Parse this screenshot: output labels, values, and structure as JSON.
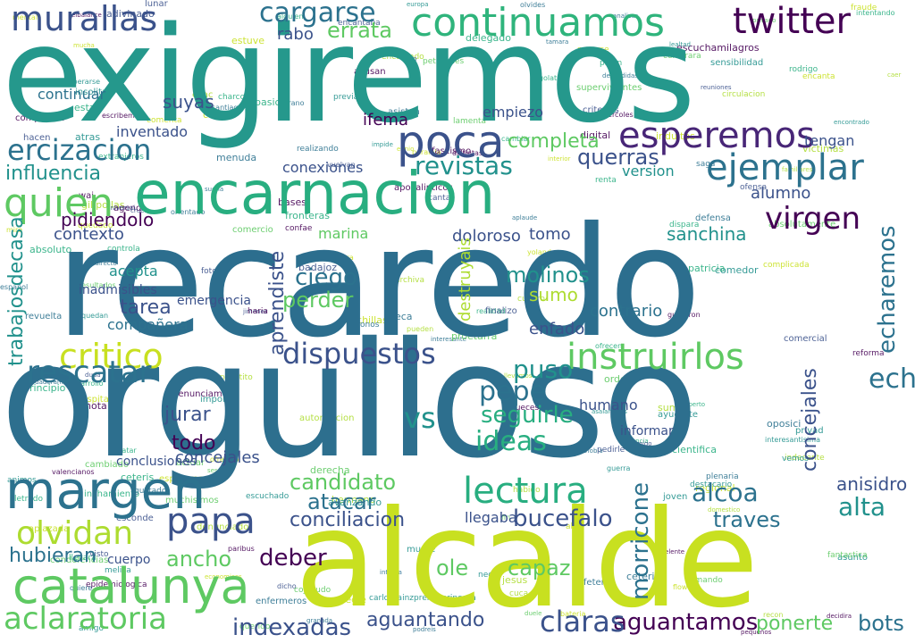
{
  "palette": [
    "#440154",
    "#3b528b",
    "#2c728e",
    "#21918c",
    "#28ae80",
    "#5ec962",
    "#addc30",
    "#c8e020"
  ],
  "words": [
    {
      "text": "orgulloso",
      "color": "#2c6e8e"
    },
    {
      "text": "recaredo",
      "color": "#2c6e8e"
    },
    {
      "text": "exigiremos",
      "color": "#21918c"
    },
    {
      "text": "alcalde",
      "color": "#c8e020"
    },
    {
      "text": "encarnacion",
      "color": "#28ae80"
    },
    {
      "text": "continuamos",
      "color": "#28ae80"
    },
    {
      "text": "margen",
      "color": "#2c728e"
    },
    {
      "text": "catalunya",
      "color": "#5ec962"
    },
    {
      "text": "poca",
      "color": "#3b528b"
    },
    {
      "text": "esperemos",
      "color": "#440154"
    },
    {
      "text": "ejemplar",
      "color": "#2c728e"
    },
    {
      "text": "twitter",
      "color": "#440154"
    },
    {
      "text": "murallas",
      "color": "#3b528b"
    },
    {
      "text": "cargarse",
      "color": "#2c728e"
    },
    {
      "text": "quien",
      "color": "#5ec962"
    },
    {
      "text": "ercizacion",
      "color": "#2c728e"
    },
    {
      "text": "virgen",
      "color": "#440154"
    },
    {
      "text": "dispuestos",
      "color": "#3b528b"
    },
    {
      "text": "instruirlos",
      "color": "#5ec962"
    },
    {
      "text": "critico",
      "color": "#c8e020"
    },
    {
      "text": "papa",
      "color": "#3b528b"
    },
    {
      "text": "lectura",
      "color": "#28ae80"
    },
    {
      "text": "aclaratoria",
      "color": "#5ec962"
    },
    {
      "text": "olvidan",
      "color": "#addc30"
    },
    {
      "text": "indexadas",
      "color": "#3b528b"
    },
    {
      "text": "aguantamos",
      "color": "#440154"
    },
    {
      "text": "claras",
      "color": "#3b528b"
    },
    {
      "text": "ideas",
      "color": "#28ae80"
    },
    {
      "text": "rescatar",
      "color": "#2c728e"
    },
    {
      "text": "echaremos",
      "color": "#2c728e"
    },
    {
      "text": "revistas",
      "color": "#21918c"
    },
    {
      "text": "completa",
      "color": "#5ec962"
    },
    {
      "text": "querras",
      "color": "#3b528b"
    },
    {
      "text": "influencia",
      "color": "#21918c"
    },
    {
      "text": "hubieran",
      "color": "#2c728e"
    },
    {
      "text": "deber",
      "color": "#440154"
    },
    {
      "text": "bucefalo",
      "color": "#3b528b"
    },
    {
      "text": "alcoa",
      "color": "#2c728e"
    },
    {
      "text": "alta",
      "color": "#21918c"
    },
    {
      "text": "atacar",
      "color": "#2c728e"
    },
    {
      "text": "candidato",
      "color": "#5ec962"
    },
    {
      "text": "pepe",
      "color": "#2c728e"
    },
    {
      "text": "vs",
      "color": "#21918c"
    },
    {
      "text": "puso",
      "color": "#21918c"
    },
    {
      "text": "seguirle",
      "color": "#28ae80"
    },
    {
      "text": "ciego",
      "color": "#2c728e"
    },
    {
      "text": "perder",
      "color": "#5ec962"
    },
    {
      "text": "tarea",
      "color": "#3b528b"
    },
    {
      "text": "molinos",
      "color": "#21918c"
    },
    {
      "text": "sumo",
      "color": "#addc30"
    },
    {
      "text": "todo",
      "color": "#440154"
    },
    {
      "text": "jurar",
      "color": "#3b528b"
    },
    {
      "text": "ancho",
      "color": "#5ec962"
    },
    {
      "text": "ole",
      "color": "#5ec962"
    },
    {
      "text": "capaz",
      "color": "#5ec962"
    },
    {
      "text": "conciliacion",
      "color": "#3b528b"
    },
    {
      "text": "traves",
      "color": "#2c728e"
    },
    {
      "text": "aguantando",
      "color": "#3b528b"
    },
    {
      "text": "bots",
      "color": "#2c728e"
    },
    {
      "text": "ponerte",
      "color": "#5ec962"
    },
    {
      "text": "errata",
      "color": "#5ec962"
    },
    {
      "text": "rabo",
      "color": "#3b528b"
    },
    {
      "text": "suyas",
      "color": "#3b528b"
    },
    {
      "text": "ifema",
      "color": "#440154"
    },
    {
      "text": "pidiendolo",
      "color": "#440154"
    },
    {
      "text": "contexto",
      "color": "#3b528b"
    },
    {
      "text": "conexiones",
      "color": "#3b528b"
    },
    {
      "text": "doloroso",
      "color": "#3b528b"
    },
    {
      "text": "tomo",
      "color": "#3b528b"
    },
    {
      "text": "sanchina",
      "color": "#21918c"
    },
    {
      "text": "alumno",
      "color": "#3b528b"
    },
    {
      "text": "enfado",
      "color": "#3b528b"
    },
    {
      "text": "contrario",
      "color": "#2c728e"
    },
    {
      "text": "inadmisibles",
      "color": "#3b528b"
    },
    {
      "text": "acepta",
      "color": "#21918c"
    },
    {
      "text": "compañera",
      "color": "#2c728e"
    },
    {
      "text": "emergencia",
      "color": "#3b528b"
    },
    {
      "text": "continuar",
      "color": "#2c728e"
    },
    {
      "text": "inventado",
      "color": "#3b528b"
    },
    {
      "text": "empiezo",
      "color": "#3b528b"
    },
    {
      "text": "version",
      "color": "#21918c"
    },
    {
      "text": "tengan",
      "color": "#3b528b"
    },
    {
      "text": "anisidro",
      "color": "#3b528b"
    },
    {
      "text": "llegaba",
      "color": "#3b528b"
    },
    {
      "text": "concejales",
      "color": "#3b528b"
    },
    {
      "text": "marina",
      "color": "#3b528b"
    },
    {
      "text": "morricone",
      "color": "#5ec962"
    },
    {
      "text": "extranjeros",
      "color": "#2c728e"
    },
    {
      "text": "aprendiste",
      "color": "#21918c"
    },
    {
      "text": "destruyais",
      "color": "#3b528b"
    },
    {
      "text": "trabajosdecasa",
      "color": "#addc30"
    },
    {
      "text": "conclusiones",
      "color": "#21918c"
    },
    {
      "text": "cuerpo",
      "color": "#3b528b"
    },
    {
      "text": "humano",
      "color": "#3b528b"
    },
    {
      "text": "informar",
      "color": "#3b528b"
    },
    {
      "text": "llevara",
      "color": "#3b528b"
    },
    {
      "text": "escuchado",
      "color": "#3b528b"
    },
    {
      "text": "fascismo",
      "color": "#3b528b"
    },
    {
      "text": "finalizo",
      "color": "#3b528b"
    },
    {
      "text": "decidira",
      "color": "#3b528b"
    },
    {
      "text": "encontrado",
      "color": "#3b528b"
    },
    {
      "text": "renta",
      "color": "#3b528b"
    },
    {
      "text": "ennio",
      "color": "#3b528b"
    },
    {
      "text": "gustado",
      "color": "#3b528b"
    },
    {
      "text": "quiere",
      "color": "#3b528b"
    },
    {
      "text": "paralela",
      "color": "#3b528b"
    },
    {
      "text": "ayudarte",
      "color": "#3b528b"
    },
    {
      "text": "veto",
      "color": "#3b528b"
    },
    {
      "text": "asalariados",
      "color": "#3b528b"
    },
    {
      "text": "beca",
      "color": "#3b528b"
    },
    {
      "text": "archiva",
      "color": "#3b528b"
    },
    {
      "text": "valla",
      "color": "#3b528b"
    },
    {
      "text": "recon",
      "color": "#3b528b"
    },
    {
      "text": "sumen",
      "color": "#3b528b"
    },
    {
      "text": "confae",
      "color": "#3b528b"
    },
    {
      "text": "guerra",
      "color": "#3b528b"
    },
    {
      "text": "mire",
      "color": "#3b528b"
    },
    {
      "text": "amigo",
      "color": "#3b528b"
    },
    {
      "text": "cuadro",
      "color": "#3b528b"
    },
    {
      "text": "familiares",
      "color": "#3b528b"
    },
    {
      "text": "enemigo",
      "color": "#3b528b"
    },
    {
      "text": "denunciado",
      "color": "#3b528b"
    },
    {
      "text": "elbalance",
      "color": "#3b528b"
    },
    {
      "text": "circulacion",
      "color": "#3b528b"
    },
    {
      "text": "haria",
      "color": "#3b528b"
    },
    {
      "text": "suena",
      "color": "#3b528b"
    },
    {
      "text": "lunar",
      "color": "#3b528b"
    },
    {
      "text": "acusan",
      "color": "#3b528b"
    },
    {
      "text": "animos",
      "color": "#3b528b"
    },
    {
      "text": "cojonudo",
      "color": "#3b528b"
    },
    {
      "text": "comercio",
      "color": "#3b528b"
    },
    {
      "text": "mucha",
      "color": "#3b528b"
    },
    {
      "text": "verdaderamente",
      "color": "#3b528b"
    },
    {
      "text": "negro",
      "color": "#3b528b"
    },
    {
      "text": "melilla",
      "color": "#21918c"
    },
    {
      "text": "privad",
      "color": "#3b528b"
    },
    {
      "text": "complicada",
      "color": "#3b528b"
    },
    {
      "text": "llamando",
      "color": "#3b528b"
    },
    {
      "text": "algo",
      "color": "#3b528b"
    },
    {
      "text": "reforma",
      "color": "#3b528b"
    },
    {
      "text": "joven",
      "color": "#3b528b"
    },
    {
      "text": "vemos",
      "color": "#3b528b"
    },
    {
      "text": "podreis",
      "color": "#3b528b"
    },
    {
      "text": "criterios",
      "color": "#3b528b"
    },
    {
      "text": "alguien",
      "color": "#3b528b"
    },
    {
      "text": "absoluto",
      "color": "#3b528b"
    },
    {
      "text": "sesgo",
      "color": "#3b528b"
    },
    {
      "text": "yolanda",
      "color": "#3b528b"
    },
    {
      "text": "badajoz",
      "color": "#3b528b"
    },
    {
      "text": "estais",
      "color": "#3b528b"
    },
    {
      "text": "tronos",
      "color": "#3b528b"
    },
    {
      "text": "valencianos",
      "color": "#3b528b"
    },
    {
      "text": "rodrigo",
      "color": "#3b528b"
    },
    {
      "text": "encantaba",
      "color": "#3b528b"
    },
    {
      "text": "privado",
      "color": "#3b528b"
    },
    {
      "text": "realizando",
      "color": "#3b528b"
    },
    {
      "text": "importa",
      "color": "#3b528b"
    },
    {
      "text": "arreglé",
      "color": "#3b528b"
    },
    {
      "text": "atras",
      "color": "#3b528b"
    },
    {
      "text": "duele",
      "color": "#3b528b"
    },
    {
      "text": "tirano",
      "color": "#3b528b"
    },
    {
      "text": "cientifica",
      "color": "#3b528b"
    },
    {
      "text": "tratar",
      "color": "#3b528b"
    },
    {
      "text": "fronteras",
      "color": "#3b528b"
    },
    {
      "text": "controla",
      "color": "#3b528b"
    },
    {
      "text": "proetarra",
      "color": "#3b528b"
    },
    {
      "text": "insolita",
      "color": "#3b528b"
    },
    {
      "text": "flow",
      "color": "#3b528b"
    },
    {
      "text": "encantado",
      "color": "#3b528b"
    },
    {
      "text": "menuda",
      "color": "#3b528b"
    },
    {
      "text": "granada",
      "color": "#3b528b"
    },
    {
      "text": "delegado",
      "color": "#3b528b"
    },
    {
      "text": "canta",
      "color": "#3b528b"
    },
    {
      "text": "cambiar",
      "color": "#3b528b"
    },
    {
      "text": "peticiones",
      "color": "#3b528b"
    },
    {
      "text": "europa",
      "color": "#3b528b"
    },
    {
      "text": "wai",
      "color": "#3b528b"
    },
    {
      "text": "fantastica",
      "color": "#3b528b"
    },
    {
      "text": "pequeños",
      "color": "#3b528b"
    },
    {
      "text": "jesus",
      "color": "#3b528b"
    },
    {
      "text": "tamara",
      "color": "#3b528b"
    },
    {
      "text": "enfermeros",
      "color": "#3b528b"
    },
    {
      "text": "pedirle",
      "color": "#3b528b"
    },
    {
      "text": "universal",
      "color": "#3b528b"
    },
    {
      "text": "interesante",
      "color": "#3b528b"
    },
    {
      "text": "quedado",
      "color": "#3b528b"
    },
    {
      "text": "cruel",
      "color": "#3b528b"
    },
    {
      "text": "indirecto",
      "color": "#3b528b"
    },
    {
      "text": "pueden",
      "color": "#3b528b"
    },
    {
      "text": "derecha",
      "color": "#3b528b"
    },
    {
      "text": "saga",
      "color": "#3b528b"
    },
    {
      "text": "muere",
      "color": "#3b528b"
    },
    {
      "text": "impide",
      "color": "#3b528b"
    },
    {
      "text": "actuar",
      "color": "#3b528b"
    },
    {
      "text": "lealtad",
      "color": "#3b528b"
    },
    {
      "text": "español",
      "color": "#3b528b"
    },
    {
      "text": "revuelta",
      "color": "#3b528b"
    },
    {
      "text": "letrado",
      "color": "#3b528b"
    },
    {
      "text": "celebrara",
      "color": "#3b528b"
    },
    {
      "text": "victimas",
      "color": "#3b528b"
    },
    {
      "text": "interesantisima",
      "color": "#3b528b"
    },
    {
      "text": "avanzando",
      "color": "#3b528b"
    },
    {
      "text": "llevamos",
      "color": "#3b528b"
    },
    {
      "text": "resultados",
      "color": "#3b528b"
    },
    {
      "text": "distintas",
      "color": "#3b528b"
    },
    {
      "text": "interior",
      "color": "#3b528b"
    },
    {
      "text": "ofrecido",
      "color": "#3b528b"
    },
    {
      "text": "sensibilidad",
      "color": "#3b528b"
    },
    {
      "text": "excelente",
      "color": "#3b528b"
    },
    {
      "text": "compañero",
      "color": "#3b528b"
    },
    {
      "text": "mental",
      "color": "#3b528b"
    },
    {
      "text": "egolatra",
      "color": "#3b528b"
    },
    {
      "text": "quedan",
      "color": "#3b528b"
    },
    {
      "text": "evidencia",
      "color": "#3b528b"
    },
    {
      "text": "oposici",
      "color": "#3b528b"
    },
    {
      "text": "agenda",
      "color": "#3b528b"
    },
    {
      "text": "habido",
      "color": "#3b528b"
    },
    {
      "text": "capa",
      "color": "#3b528b"
    },
    {
      "text": "defensa",
      "color": "#3b528b"
    },
    {
      "text": "dicho",
      "color": "#3b528b"
    },
    {
      "text": "bases",
      "color": "#3b528b"
    },
    {
      "text": "indultos",
      "color": "#3b528b"
    },
    {
      "text": "fin",
      "color": "#3b528b"
    },
    {
      "text": "plenaria",
      "color": "#3b528b"
    },
    {
      "text": "orden",
      "color": "#3b528b"
    },
    {
      "text": "caer",
      "color": "#3b528b"
    },
    {
      "text": "previa",
      "color": "#3b528b"
    },
    {
      "text": "santiago",
      "color": "#3b528b"
    },
    {
      "text": "jimenez",
      "color": "#3b528b"
    },
    {
      "text": "miercoles",
      "color": "#3b528b"
    },
    {
      "text": "duda",
      "color": "#3b528b"
    },
    {
      "text": "desarrollo",
      "color": "#3b528b"
    },
    {
      "text": "cuchillas",
      "color": "#3b528b"
    },
    {
      "text": "comercial",
      "color": "#3b528b"
    },
    {
      "text": "recuperarse",
      "color": "#3b528b"
    },
    {
      "text": "muchisimos",
      "color": "#3b528b"
    },
    {
      "text": "autorizacion",
      "color": "#3b528b"
    },
    {
      "text": "indecente",
      "color": "#3b528b"
    },
    {
      "text": "anado",
      "color": "#3b528b"
    },
    {
      "text": "nota",
      "color": "#3b528b"
    },
    {
      "text": "estuve",
      "color": "#3b528b"
    },
    {
      "text": "lafetera",
      "color": "#3b528b"
    },
    {
      "text": "reuniones",
      "color": "#3b528b"
    },
    {
      "text": "domestico",
      "color": "#3b528b"
    },
    {
      "text": "piden",
      "color": "#3b528b"
    },
    {
      "text": "esconde",
      "color": "#3b528b"
    },
    {
      "text": "denunciamos",
      "color": "#3b528b"
    },
    {
      "text": "intenta",
      "color": "#3b528b"
    },
    {
      "text": "dispara",
      "color": "#3b528b"
    },
    {
      "text": "escribeme",
      "color": "#3b528b"
    },
    {
      "text": "olvides",
      "color": "#3b528b"
    },
    {
      "text": "prevaricadora",
      "color": "#3b528b"
    },
    {
      "text": "cpac",
      "color": "#3b528b"
    },
    {
      "text": "escuchamilagros",
      "color": "#3b528b"
    },
    {
      "text": "nueces",
      "color": "#3b528b"
    },
    {
      "text": "comenta",
      "color": "#3b528b"
    },
    {
      "text": "destacario",
      "color": "#3b528b"
    },
    {
      "text": "cambiado",
      "color": "#3b528b"
    },
    {
      "text": "bateria",
      "color": "#3b528b"
    },
    {
      "text": "espetamos",
      "color": "#3b528b"
    },
    {
      "text": "aplaude",
      "color": "#3b528b"
    },
    {
      "text": "basica",
      "color": "#3b528b"
    },
    {
      "text": "diacontralahomofobia",
      "color": "#3b528b"
    },
    {
      "text": "supervivientes",
      "color": "#3b528b"
    },
    {
      "text": "patricia",
      "color": "#3b528b"
    },
    {
      "text": "ofensa",
      "color": "#3b528b"
    },
    {
      "text": "inchamiento",
      "color": "#3b528b"
    },
    {
      "text": "comedor",
      "color": "#3b528b"
    },
    {
      "text": "asisten",
      "color": "#3b528b"
    },
    {
      "text": "carlossainzpremioprincesa",
      "color": "#3b528b"
    },
    {
      "text": "apiazada",
      "color": "#3b528b"
    },
    {
      "text": "adivinado",
      "color": "#3b528b"
    },
    {
      "text": "apocalipticos",
      "color": "#3b528b"
    },
    {
      "text": "gilipollas",
      "color": "#3b528b"
    },
    {
      "text": "realidad",
      "color": "#3b528b"
    },
    {
      "text": "guitarron",
      "color": "#3b528b"
    },
    {
      "text": "ofrecen",
      "color": "#3b528b"
    },
    {
      "text": "vuelvan",
      "color": "#3b528b"
    },
    {
      "text": "hacen",
      "color": "#3b528b"
    },
    {
      "text": "minuto",
      "color": "#3b528b"
    },
    {
      "text": "querido",
      "color": "#3b528b"
    },
    {
      "text": "encanta",
      "color": "#3b528b"
    },
    {
      "text": "condolencias",
      "color": "#3b528b"
    },
    {
      "text": "absolutamente",
      "color": "#3b528b"
    },
    {
      "text": "visto",
      "color": "#3b528b"
    },
    {
      "text": "orientado",
      "color": "#3b528b"
    },
    {
      "text": "fraude",
      "color": "#3b528b"
    },
    {
      "text": "charcos",
      "color": "#3b528b"
    },
    {
      "text": "lamenta",
      "color": "#3b528b"
    },
    {
      "text": "hospitales",
      "color": "#3b528b"
    },
    {
      "text": "principio",
      "color": "#3b528b"
    },
    {
      "text": "despedidas",
      "color": "#3b528b"
    },
    {
      "text": "asunto",
      "color": "#3b528b"
    },
    {
      "text": "epidemiologica",
      "color": "#3b528b"
    },
    {
      "text": "hermano",
      "color": "#3b528b"
    },
    {
      "text": "foto",
      "color": "#3b528b"
    },
    {
      "text": "ceteris",
      "color": "#3b528b"
    },
    {
      "text": "paribus",
      "color": "#3b528b"
    },
    {
      "text": "cuca",
      "color": "#3b528b"
    },
    {
      "text": "regional",
      "color": "#3b528b"
    },
    {
      "text": "intentando",
      "color": "#3b528b"
    },
    {
      "text": "nacerse",
      "color": "#3b528b"
    },
    {
      "text": "experto",
      "color": "#3b528b"
    },
    {
      "text": "economicos",
      "color": "#3b528b"
    },
    {
      "text": "perfil",
      "color": "#3b528b"
    },
    {
      "text": "analizar",
      "color": "#3b528b"
    },
    {
      "text": "digital",
      "color": "#3b528b"
    },
    {
      "text": "ceteris",
      "color": "#3b528b"
    },
    {
      "text": "puestito",
      "color": "#3b528b"
    }
  ]
}
